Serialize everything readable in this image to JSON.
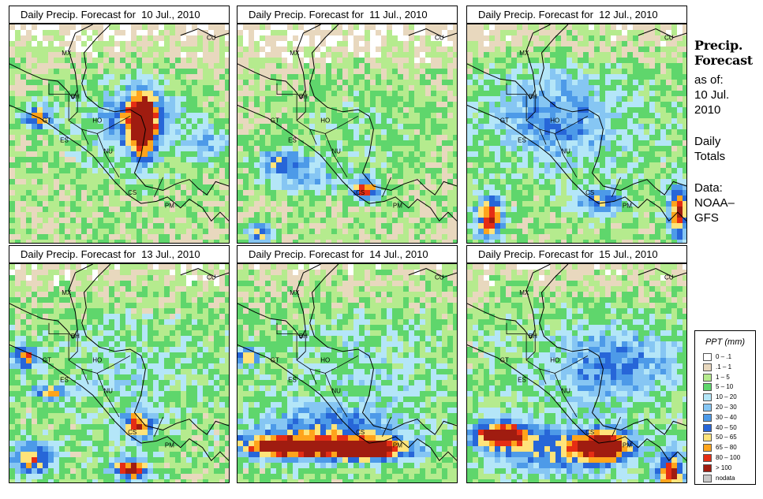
{
  "panels": [
    {
      "title": "Daily Precip. Forecast for  10 Jul., 2010"
    },
    {
      "title": "Daily Precip. Forecast for  11 Jul., 2010"
    },
    {
      "title": "Daily Precip. Forecast for  12 Jul., 2010"
    },
    {
      "title": "Daily Precip. Forecast for  13 Jul., 2010"
    },
    {
      "title": "Daily Precip. Forecast for  14 Jul., 2010"
    },
    {
      "title": "Daily Precip. Forecast for  15 Jul., 2010"
    }
  ],
  "country_labels": [
    "CU",
    "MX",
    "BH",
    "GT",
    "HO",
    "ES",
    "NU",
    "CS",
    "PM"
  ],
  "sidebar": {
    "title_line1": "Precip.",
    "title_line2": "Forecast",
    "asof_line1": "as of:",
    "asof_line2": "10 Jul.",
    "asof_line3": "2010",
    "totals_line1": "Daily",
    "totals_line2": "Totals",
    "data_line1": "Data:",
    "data_line2": "NOAA–",
    "data_line3": "GFS"
  },
  "legend": {
    "title": "PPT (mm)",
    "items": [
      {
        "label": "0 – .1",
        "color": "#ffffff"
      },
      {
        "label": ".1 – 1",
        "color": "#e8d8be"
      },
      {
        "label": "1 – 5",
        "color": "#b5eb8e"
      },
      {
        "label": "5 – 10",
        "color": "#5fd66c"
      },
      {
        "label": "10 – 20",
        "color": "#b4e6f8"
      },
      {
        "label": "20 – 30",
        "color": "#86c6f3"
      },
      {
        "label": "30 – 40",
        "color": "#4d9ae8"
      },
      {
        "label": "40 – 50",
        "color": "#2766d8"
      },
      {
        "label": "50 – 65",
        "color": "#ffe37a"
      },
      {
        "label": "65 – 80",
        "color": "#ffa41c"
      },
      {
        "label": "80 – 100",
        "color": "#e52d14"
      },
      {
        "label": "> 100",
        "color": "#a01c10"
      },
      {
        "label": "nodata",
        "color": "#c8c8c8"
      }
    ]
  }
}
